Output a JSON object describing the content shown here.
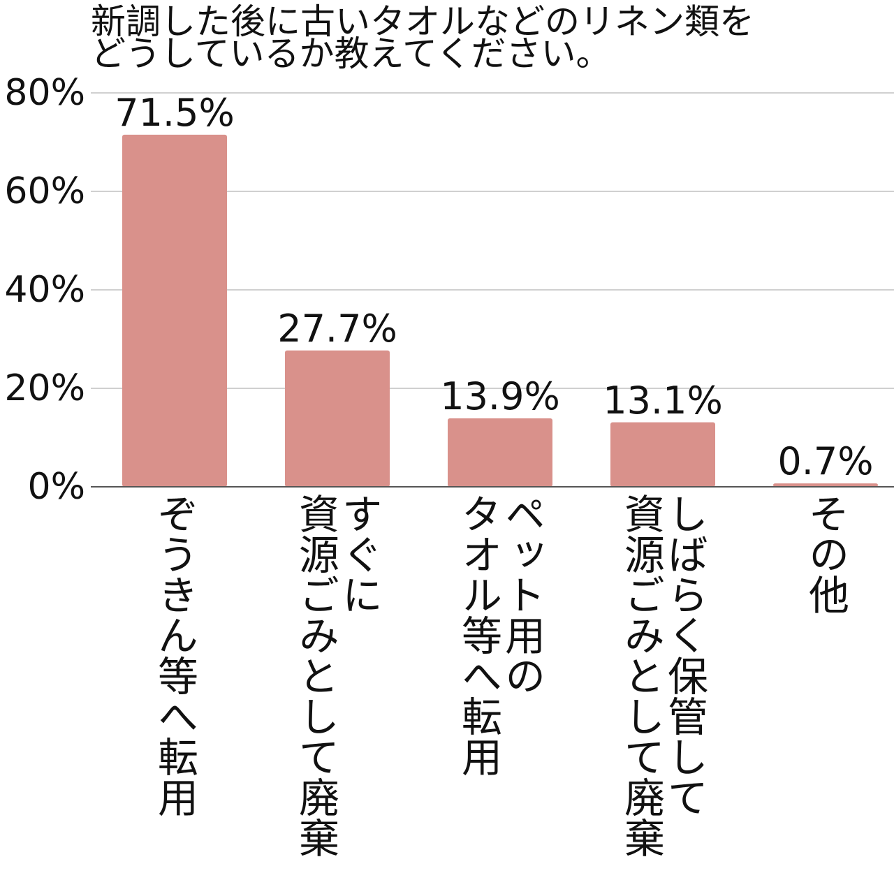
{
  "chart_data": {
    "type": "bar",
    "title_lines": [
      "新調した後に古いタオルなどのリネン類を",
      "どうしているか教えてください。"
    ],
    "categories": [
      [
        "ぞうきん等へ転用"
      ],
      [
        "すぐに",
        "資源ごみとして廃棄"
      ],
      [
        "ペット用の",
        "タオル等へ転用"
      ],
      [
        "しばらく保管して",
        "資源ごみとして廃棄"
      ],
      [
        "その他"
      ]
    ],
    "values": [
      71.5,
      27.7,
      13.9,
      13.1,
      0.7
    ],
    "value_labels": [
      "71.5%",
      "27.7%",
      "13.9%",
      "13.1%",
      "0.7%"
    ],
    "yticks": [
      0,
      20,
      40,
      60,
      80
    ],
    "ytick_labels": [
      "0%",
      "20%",
      "40%",
      "60%",
      "80%"
    ],
    "ylim": [
      0,
      80
    ],
    "grid": true,
    "bar_color": "#d9918b",
    "grid_color": "#d0d0d0",
    "axis_color": "#555555"
  }
}
